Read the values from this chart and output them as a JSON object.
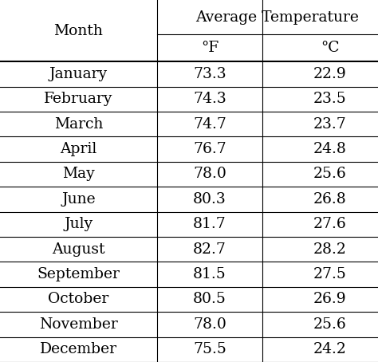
{
  "months": [
    "January",
    "February",
    "March",
    "April",
    "May",
    "June",
    "July",
    "August",
    "September",
    "October",
    "November",
    "December"
  ],
  "temp_f": [
    "73.3",
    "74.3",
    "74.7",
    "76.7",
    "78.0",
    "80.3",
    "81.7",
    "82.7",
    "81.5",
    "80.5",
    "78.0",
    "75.5"
  ],
  "temp_c": [
    "22.9",
    "23.5",
    "23.7",
    "24.8",
    "25.6",
    "26.8",
    "27.6",
    "28.2",
    "27.5",
    "26.9",
    "25.6",
    "24.2"
  ],
  "header_main": "Average Temperature",
  "header_f": "°F",
  "header_c": "°C",
  "col_month": "Month",
  "bg_color": "#ffffff",
  "line_color": "#000000",
  "font_size": 13.5,
  "header_font_size": 13.5,
  "fig_width": 4.74,
  "fig_height": 4.54,
  "dpi": 100
}
